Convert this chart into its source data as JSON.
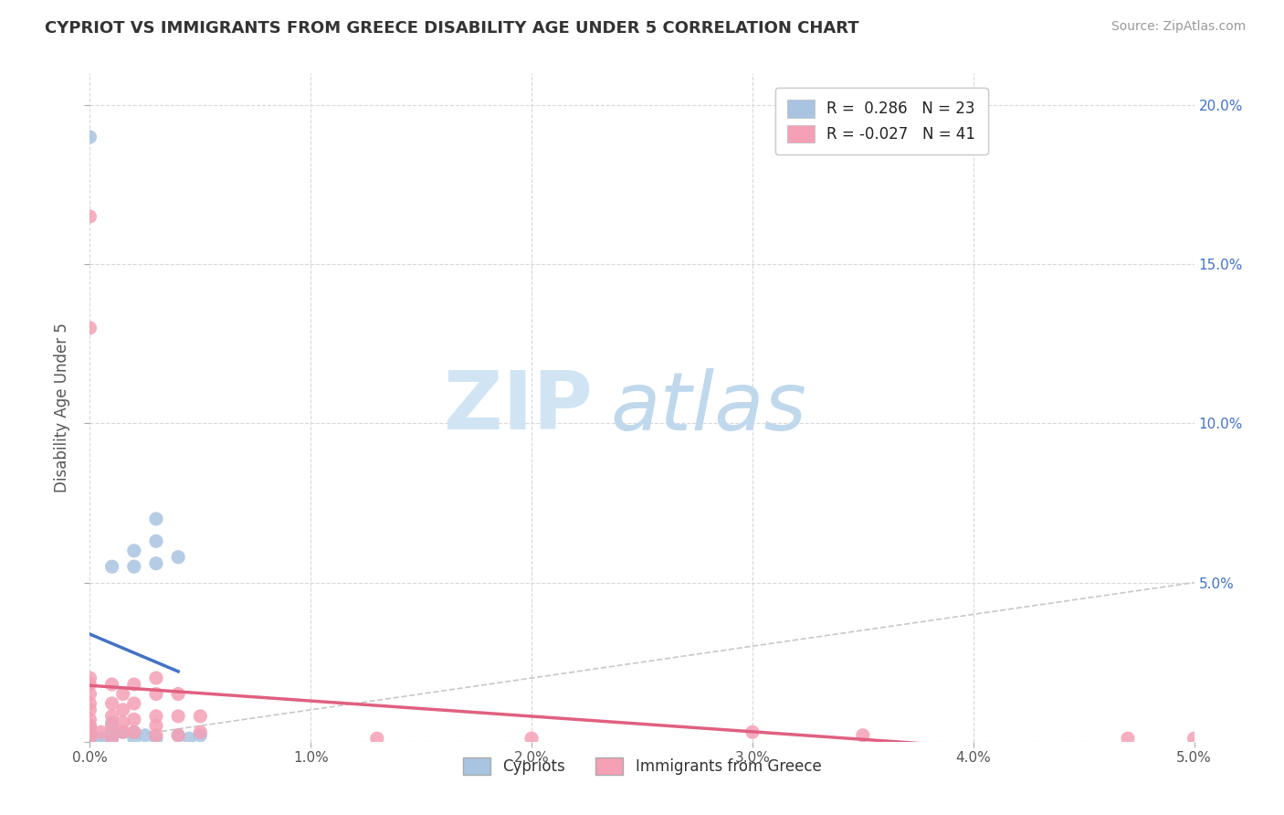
{
  "title": "CYPRIOT VS IMMIGRANTS FROM GREECE DISABILITY AGE UNDER 5 CORRELATION CHART",
  "source": "Source: ZipAtlas.com",
  "ylabel": "Disability Age Under 5",
  "xlim": [
    0.0,
    0.05
  ],
  "ylim": [
    0.0,
    0.21
  ],
  "xticks": [
    0.0,
    0.01,
    0.02,
    0.03,
    0.04,
    0.05
  ],
  "xticklabels": [
    "0.0%",
    "1.0%",
    "2.0%",
    "3.0%",
    "4.0%",
    "5.0%"
  ],
  "yticks": [
    0.0,
    0.05,
    0.1,
    0.15,
    0.2
  ],
  "yticklabels_right": [
    "",
    "5.0%",
    "10.0%",
    "15.0%",
    "20.0%"
  ],
  "legend_r1": "R =  0.286",
  "legend_n1": "N = 23",
  "legend_r2": "R = -0.027",
  "legend_n2": "N = 41",
  "cypriot_color": "#a8c4e0",
  "immigrant_color": "#f4a0b5",
  "cypriot_line_color": "#4472c4",
  "immigrant_line_color": "#e06080",
  "diagonal_color": "#c8c8c8",
  "legend_labels": [
    "Cypriots",
    "Immigrants from Greece"
  ],
  "cypriot_x": [
    0.0,
    0.0,
    0.0,
    0.0,
    0.0005,
    0.001,
    0.001,
    0.001,
    0.001,
    0.0015,
    0.002,
    0.002,
    0.002,
    0.002,
    0.0025,
    0.003,
    0.003,
    0.003,
    0.003,
    0.004,
    0.004,
    0.0045,
    0.005
  ],
  "cypriot_y": [
    0.001,
    0.003,
    0.19,
    0.005,
    0.001,
    0.001,
    0.003,
    0.055,
    0.006,
    0.003,
    0.001,
    0.003,
    0.055,
    0.06,
    0.002,
    0.001,
    0.056,
    0.063,
    0.07,
    0.002,
    0.058,
    0.001,
    0.002
  ],
  "immigrant_x": [
    0.0,
    0.0,
    0.0,
    0.0,
    0.0,
    0.0,
    0.0,
    0.0,
    0.0,
    0.0005,
    0.001,
    0.001,
    0.001,
    0.001,
    0.001,
    0.0015,
    0.0015,
    0.0015,
    0.0015,
    0.002,
    0.002,
    0.002,
    0.002,
    0.003,
    0.003,
    0.003,
    0.003,
    0.003,
    0.004,
    0.004,
    0.004,
    0.005,
    0.005,
    0.0,
    0.0,
    0.013,
    0.02,
    0.03,
    0.035,
    0.047,
    0.05
  ],
  "immigrant_y": [
    0.001,
    0.003,
    0.005,
    0.007,
    0.01,
    0.012,
    0.015,
    0.018,
    0.02,
    0.003,
    0.001,
    0.005,
    0.008,
    0.012,
    0.018,
    0.003,
    0.006,
    0.01,
    0.015,
    0.003,
    0.007,
    0.012,
    0.018,
    0.002,
    0.005,
    0.008,
    0.015,
    0.02,
    0.002,
    0.008,
    0.015,
    0.003,
    0.008,
    0.13,
    0.165,
    0.001,
    0.001,
    0.003,
    0.002,
    0.001,
    0.001
  ]
}
